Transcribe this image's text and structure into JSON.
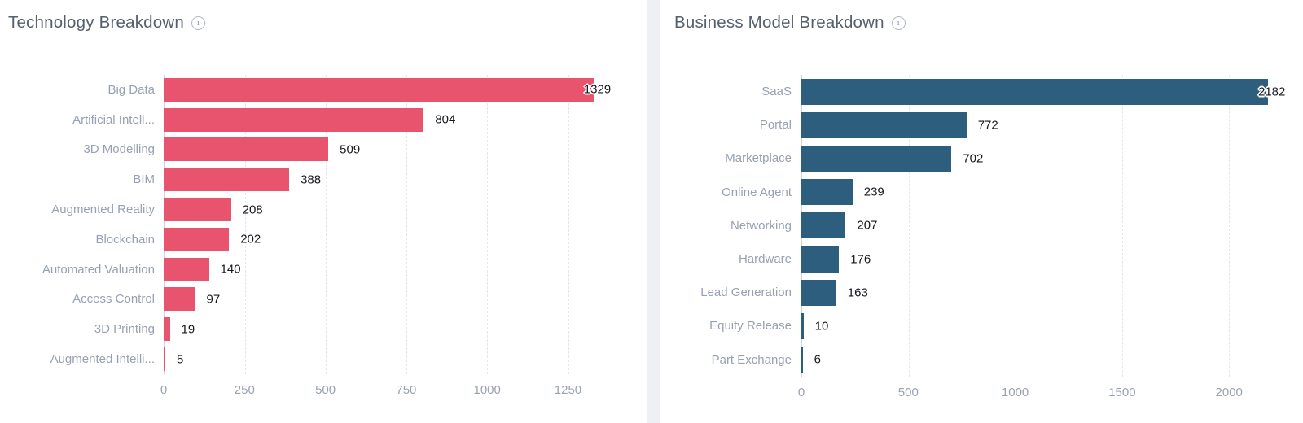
{
  "chart_data": [
    {
      "type": "bar",
      "orientation": "horizontal",
      "title": "Technology Breakdown",
      "categories": [
        "Big Data",
        "Artificial Intell...",
        "3D Modelling",
        "BIM",
        "Augmented Reality",
        "Blockchain",
        "Automated Valuation",
        "Access Control",
        "3D Printing",
        "Augmented Intelli..."
      ],
      "values": [
        1329,
        804,
        509,
        388,
        208,
        202,
        140,
        97,
        19,
        5
      ],
      "bar_color": "#e8546e",
      "xlim": [
        0,
        1420
      ],
      "xticks": [
        0,
        250,
        500,
        750,
        1000,
        1250
      ],
      "grid": "vertical-dashed",
      "legend": "none",
      "value_labels": "outside-end"
    },
    {
      "type": "bar",
      "orientation": "horizontal",
      "title": "Business Model Breakdown",
      "categories": [
        "SaaS",
        "Portal",
        "Marketplace",
        "Online Agent",
        "Networking",
        "Hardware",
        "Lead Generation",
        "Equity Release",
        "Part Exchange"
      ],
      "values": [
        2182,
        772,
        702,
        239,
        207,
        176,
        163,
        10,
        6
      ],
      "bar_color": "#2e5e7e",
      "xlim": [
        0,
        2300
      ],
      "xticks": [
        0,
        500,
        1000,
        1500,
        2000
      ],
      "grid": "vertical-dashed",
      "legend": "none",
      "value_labels": "outside-end"
    }
  ],
  "ui": {
    "info_icon_glyph": "i",
    "axis_line_color": "#c8d4e6",
    "gridline_color": "#e4e6ec",
    "category_label_color": "#98a1b3",
    "tick_label_color": "#9aa2b2",
    "value_label_color": "#16191e",
    "title_color": "#555f6e",
    "card_background": "#ffffff",
    "page_background": "#eef0f4"
  }
}
